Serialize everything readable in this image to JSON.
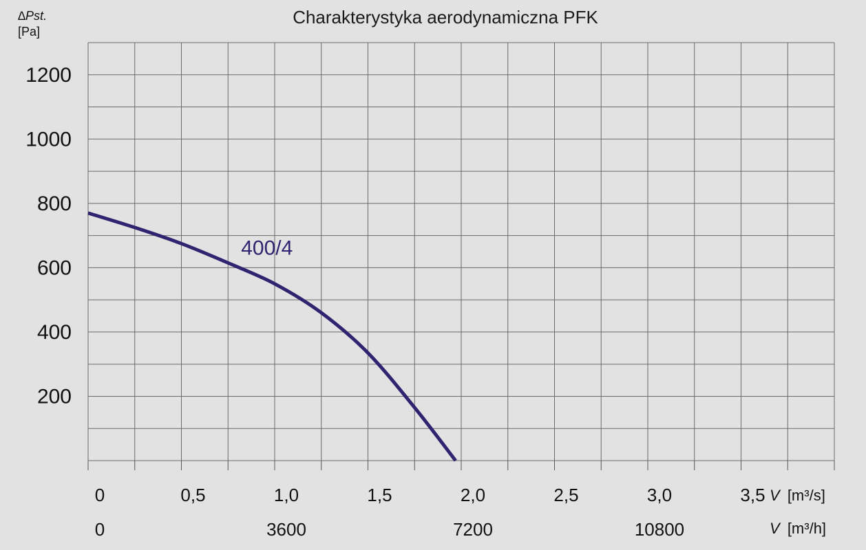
{
  "chart_data": {
    "type": "line",
    "title": "Charakterystyka aerodynamiczna PFK",
    "ylabel_symbol": "∆Pst.",
    "ylabel_unit": "[Pa]",
    "ylim": [
      0,
      1300
    ],
    "yticks": [
      {
        "value": 200,
        "label": "200"
      },
      {
        "value": 400,
        "label": "400"
      },
      {
        "value": 600,
        "label": "600"
      },
      {
        "value": 800,
        "label": "800"
      },
      {
        "value": 1000,
        "label": "1000"
      },
      {
        "value": 1200,
        "label": "1200"
      }
    ],
    "xlim": [
      0,
      4.0
    ],
    "xticks_m3s": [
      {
        "value": 0,
        "label": "0"
      },
      {
        "value": 0.5,
        "label": "0,5"
      },
      {
        "value": 1.0,
        "label": "1,0"
      },
      {
        "value": 1.5,
        "label": "1,5"
      },
      {
        "value": 2.0,
        "label": "2,0"
      },
      {
        "value": 2.5,
        "label": "2,5"
      },
      {
        "value": 3.0,
        "label": "3,0"
      },
      {
        "value": 3.5,
        "label": "3,5"
      }
    ],
    "xticks_m3h": [
      {
        "value": 0,
        "label": "0"
      },
      {
        "value": 1.0,
        "label": "3600"
      },
      {
        "value": 2.0,
        "label": "7200"
      },
      {
        "value": 3.0,
        "label": "10800"
      }
    ],
    "xunit_m3s": {
      "symbol": "V",
      "unit": "[m³/s]"
    },
    "xunit_m3h": {
      "symbol": "V",
      "unit": "[m³/h]"
    },
    "grid": true,
    "series": [
      {
        "name": "400/4",
        "color": "#2e2470",
        "x": [
          0,
          0.25,
          0.5,
          0.75,
          1.0,
          1.25,
          1.5,
          1.75,
          1.97
        ],
        "y": [
          770,
          725,
          675,
          615,
          550,
          460,
          335,
          165,
          0
        ]
      }
    ]
  }
}
